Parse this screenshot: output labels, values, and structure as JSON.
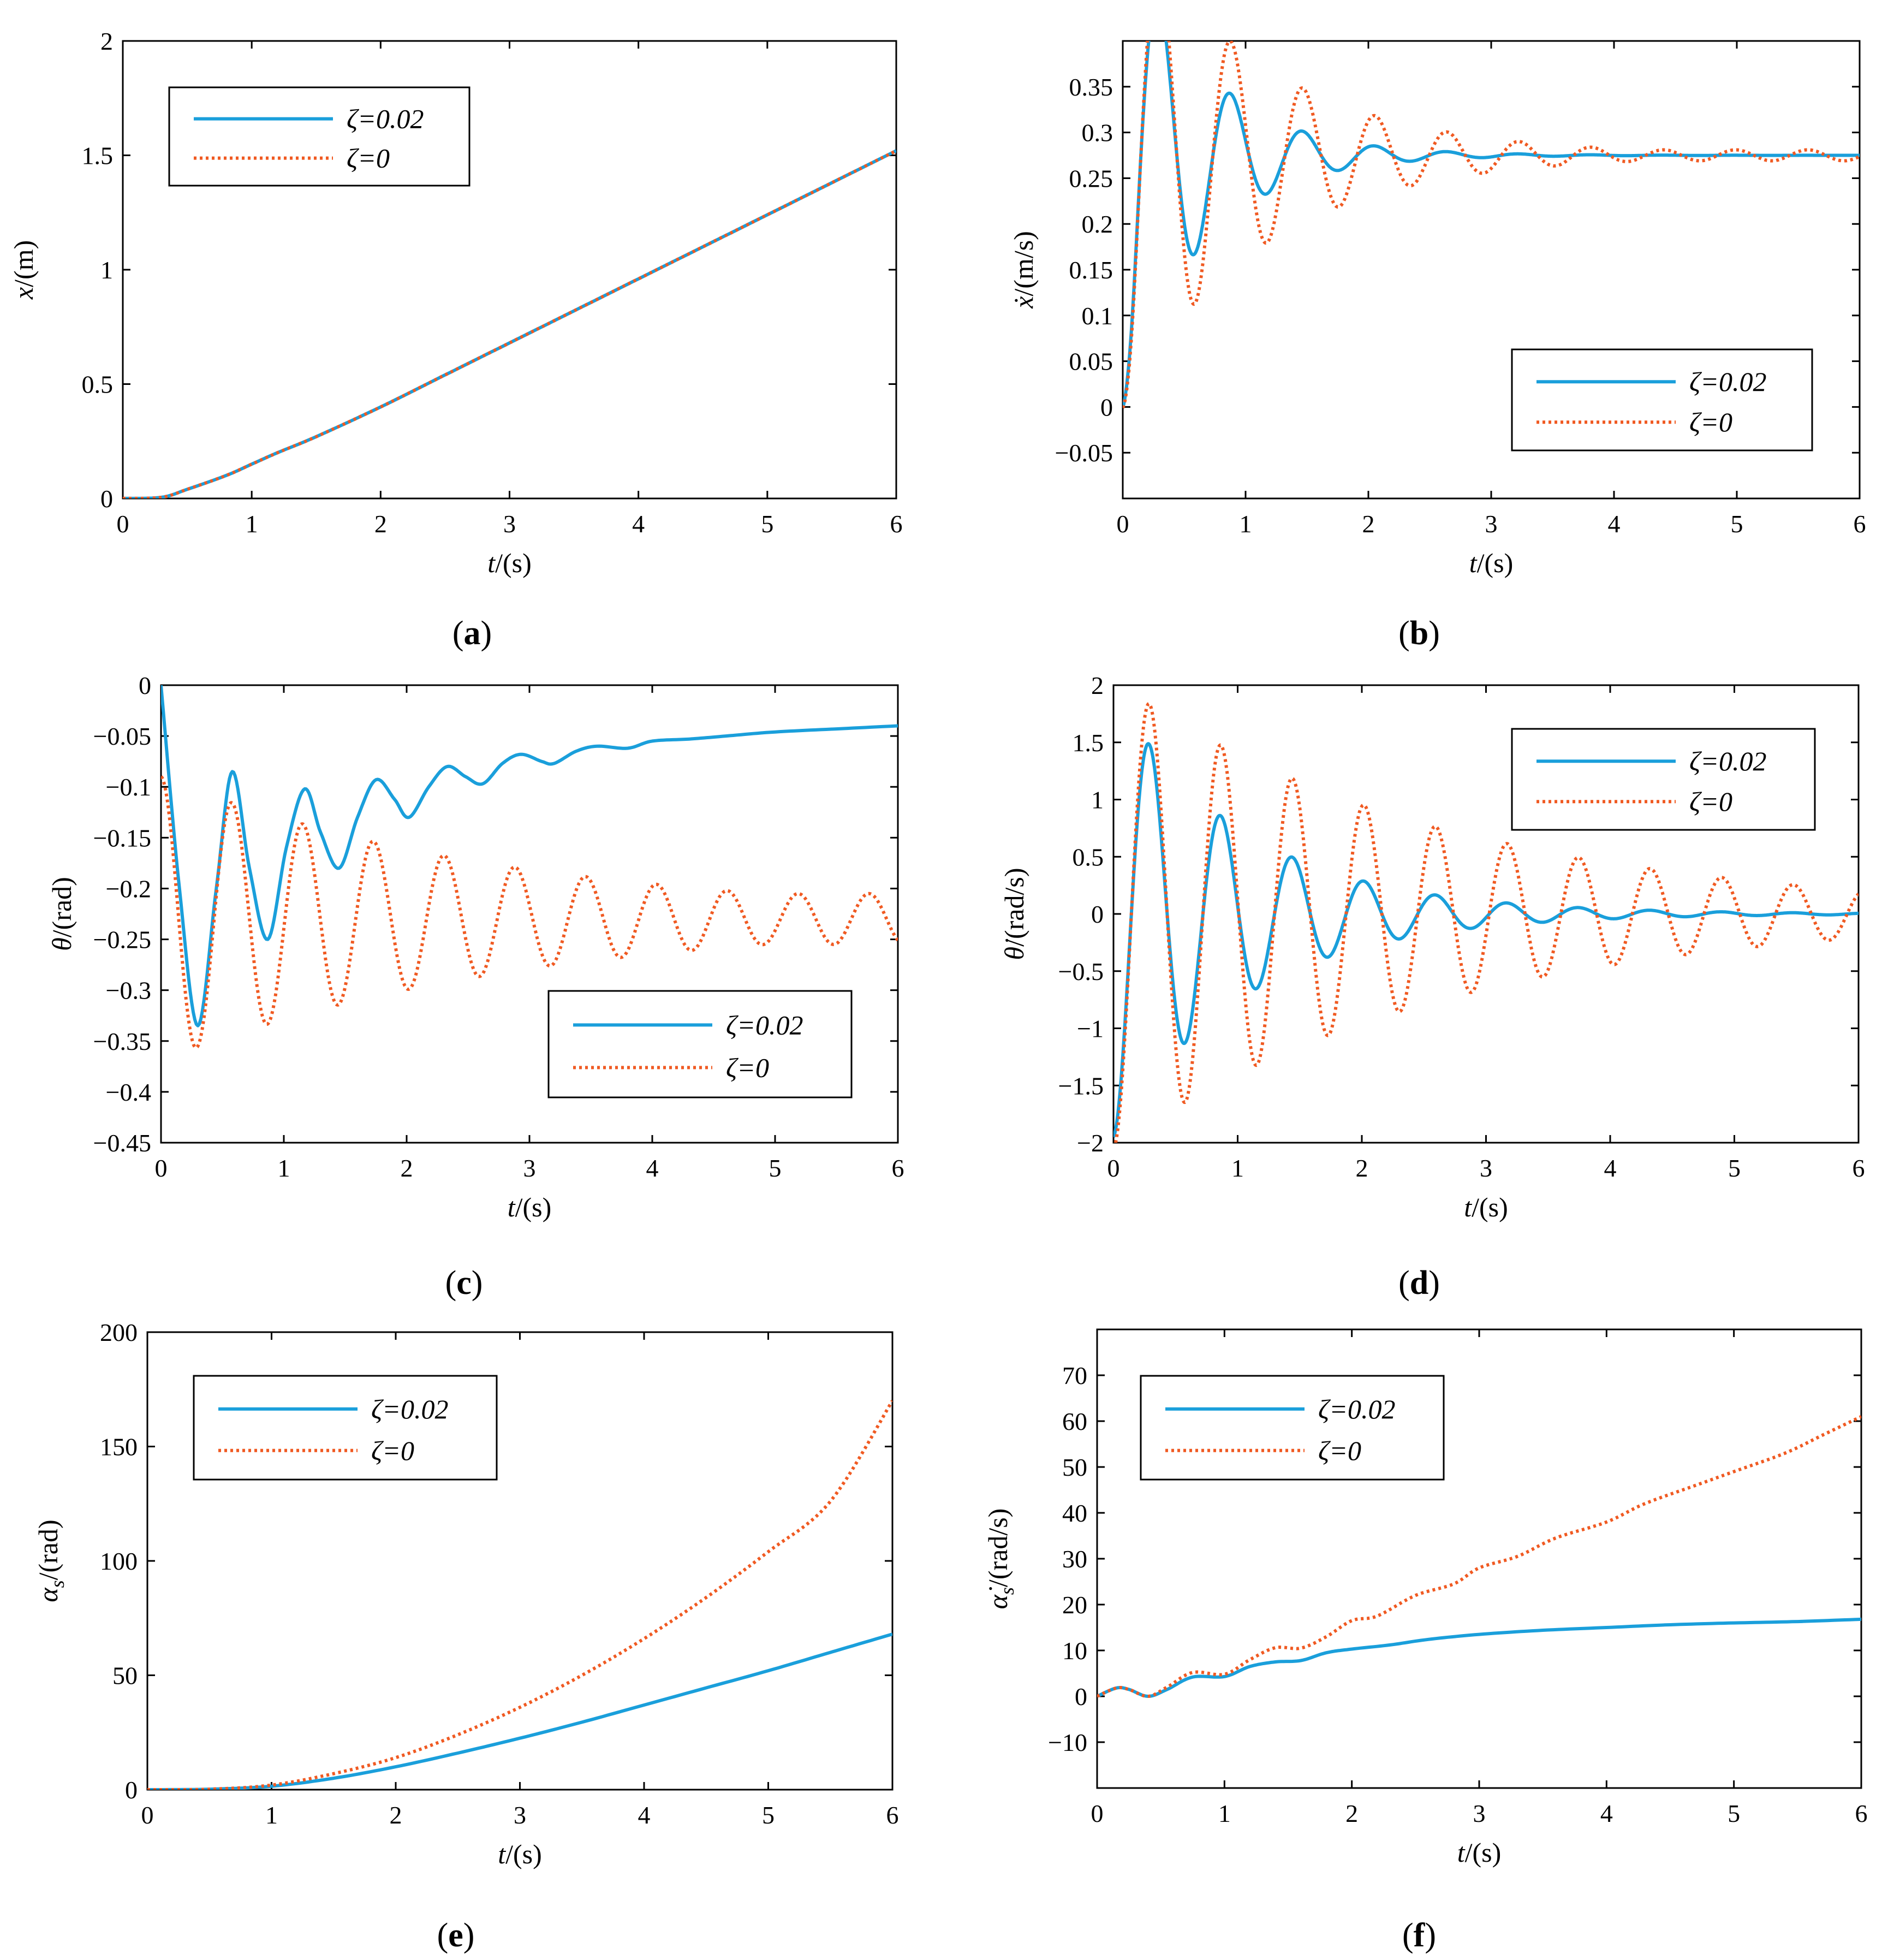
{
  "colors": {
    "damped": "#1a9fdb",
    "undamped": "#f05a22",
    "axes": "#000000"
  },
  "legend": {
    "damped_label": "ζ=0.02",
    "undamped_label": "ζ=0"
  },
  "chart_data": [
    {
      "id": "a",
      "type": "line",
      "caption_letter": "a",
      "xlabel": {
        "var": "t",
        "unit": "/(s)"
      },
      "ylabel": {
        "var": "x",
        "unit": "/(m)"
      },
      "xlim": [
        0,
        6
      ],
      "ylim": [
        0,
        2
      ],
      "xticks": [
        0,
        1,
        2,
        3,
        4,
        5,
        6
      ],
      "yticks": [
        0,
        0.5,
        1,
        1.5,
        2
      ],
      "ytick_labels": [
        "0",
        "0.5",
        "1",
        "1.5",
        "2"
      ],
      "legend_position": "top-left",
      "series": [
        {
          "name": "ζ=0.02",
          "style": "solid",
          "points": [
            [
              0,
              0
            ],
            [
              0.3,
              0.005
            ],
            [
              0.5,
              0.04
            ],
            [
              0.8,
              0.1
            ],
            [
              1.0,
              0.15
            ],
            [
              1.2,
              0.2
            ],
            [
              1.5,
              0.27
            ],
            [
              2,
              0.4
            ],
            [
              2.5,
              0.54
            ],
            [
              3,
              0.68
            ],
            [
              3.5,
              0.82
            ],
            [
              4,
              0.96
            ],
            [
              4.5,
              1.1
            ],
            [
              5,
              1.24
            ],
            [
              5.5,
              1.38
            ],
            [
              6,
              1.52
            ]
          ]
        },
        {
          "name": "ζ=0",
          "style": "dotted",
          "points": [
            [
              0,
              0
            ],
            [
              0.3,
              0.005
            ],
            [
              0.5,
              0.04
            ],
            [
              0.8,
              0.1
            ],
            [
              1.0,
              0.15
            ],
            [
              1.2,
              0.2
            ],
            [
              1.5,
              0.27
            ],
            [
              2,
              0.4
            ],
            [
              2.5,
              0.54
            ],
            [
              3,
              0.68
            ],
            [
              3.5,
              0.82
            ],
            [
              4,
              0.96
            ],
            [
              4.5,
              1.1
            ],
            [
              5,
              1.24
            ],
            [
              5.5,
              1.38
            ],
            [
              6,
              1.52
            ]
          ]
        }
      ]
    },
    {
      "id": "b",
      "type": "line",
      "caption_letter": "b",
      "xlabel": {
        "var": "t",
        "unit": "/(s)"
      },
      "ylabel": {
        "var": "ẋ",
        "unit": "/(m/s)"
      },
      "xlim": [
        0,
        6
      ],
      "ylim": [
        -0.1,
        0.4
      ],
      "xticks": [
        0,
        1,
        2,
        3,
        4,
        5,
        6
      ],
      "yticks": [
        -0.05,
        0,
        0.05,
        0.1,
        0.15,
        0.2,
        0.25,
        0.3,
        0.35
      ],
      "ytick_labels": [
        "−0.05",
        "0",
        "0.05",
        "0.1",
        "0.15",
        "0.2",
        "0.25",
        "0.3",
        "0.35"
      ],
      "legend_position": "bottom-right",
      "series": [
        {
          "name": "ζ=0.02",
          "style": "solid",
          "model": {
            "base": 0.275,
            "amp": -0.275,
            "omega": 10.7,
            "phase": 0,
            "decay": 1.6,
            "dip": -0.012
          }
        },
        {
          "name": "ζ=0",
          "style": "dotted",
          "model": {
            "base": 0.275,
            "amp": -0.275,
            "omega": 10.7,
            "phase": 0,
            "decay": 0.9,
            "dip": -0.012,
            "sustain": 0.006
          }
        }
      ]
    },
    {
      "id": "c",
      "type": "line",
      "caption_letter": "c",
      "xlabel": {
        "var": "t",
        "unit": "/(s)"
      },
      "ylabel": {
        "var": "θ",
        "unit": "/(rad)"
      },
      "xlim": [
        0,
        6
      ],
      "ylim": [
        -0.45,
        0
      ],
      "xticks": [
        0,
        1,
        2,
        3,
        4,
        5,
        6
      ],
      "yticks": [
        -0.45,
        -0.4,
        -0.35,
        -0.3,
        -0.25,
        -0.2,
        -0.15,
        -0.1,
        -0.05,
        0
      ],
      "ytick_labels": [
        "−0.45",
        "−0.4",
        "−0.35",
        "−0.3",
        "−0.25",
        "−0.2",
        "−0.15",
        "−0.1",
        "−0.05",
        "0"
      ],
      "legend_position": "bottom-right",
      "series": [
        {
          "name": "ζ=0.02",
          "style": "solid",
          "points": [
            [
              0,
              0
            ],
            [
              0.15,
              -0.2
            ],
            [
              0.3,
              -0.335
            ],
            [
              0.45,
              -0.2
            ],
            [
              0.58,
              -0.085
            ],
            [
              0.72,
              -0.18
            ],
            [
              0.87,
              -0.25
            ],
            [
              1.02,
              -0.16
            ],
            [
              1.17,
              -0.102
            ],
            [
              1.3,
              -0.145
            ],
            [
              1.45,
              -0.18
            ],
            [
              1.6,
              -0.13
            ],
            [
              1.75,
              -0.093
            ],
            [
              1.9,
              -0.112
            ],
            [
              2.02,
              -0.13
            ],
            [
              2.18,
              -0.1
            ],
            [
              2.33,
              -0.08
            ],
            [
              2.48,
              -0.09
            ],
            [
              2.62,
              -0.097
            ],
            [
              2.78,
              -0.077
            ],
            [
              2.93,
              -0.068
            ],
            [
              3.1,
              -0.075
            ],
            [
              3.2,
              -0.077
            ],
            [
              3.38,
              -0.065
            ],
            [
              3.55,
              -0.06
            ],
            [
              3.8,
              -0.062
            ],
            [
              4.0,
              -0.055
            ],
            [
              4.3,
              -0.053
            ],
            [
              4.6,
              -0.05
            ],
            [
              5.0,
              -0.046
            ],
            [
              5.5,
              -0.043
            ],
            [
              6,
              -0.04
            ]
          ]
        },
        {
          "name": "ζ=0",
          "style": "dotted",
          "model": {
            "base": -0.23,
            "amp": 0.14,
            "omega": 10.9,
            "phase": 0,
            "decay": 0.35,
            "floor": 0.025
          }
        }
      ]
    },
    {
      "id": "d",
      "type": "line",
      "caption_letter": "d",
      "xlabel": {
        "var": "t",
        "unit": "/(s)"
      },
      "ylabel": {
        "var": "θ̇",
        "unit": "/(rad/s)"
      },
      "xlim": [
        0,
        6
      ],
      "ylim": [
        -2,
        2
      ],
      "xticks": [
        0,
        1,
        2,
        3,
        4,
        5,
        6
      ],
      "yticks": [
        -2,
        -1.5,
        -1,
        -0.5,
        0,
        0.5,
        1,
        1.5,
        2
      ],
      "ytick_labels": [
        "−2",
        "−1.5",
        "−1",
        "−0.5",
        "0",
        "0.5",
        "1",
        "1.5",
        "2"
      ],
      "legend_position": "top-right",
      "series": [
        {
          "name": "ζ=0.02",
          "style": "solid",
          "model": {
            "base": 0,
            "amp": -1.95,
            "omega": 10.9,
            "phase": 0,
            "decay": 0.95
          }
        },
        {
          "name": "ζ=0",
          "style": "dotted",
          "model": {
            "base": 0,
            "amp": -2.05,
            "omega": 10.9,
            "phase": 0,
            "decay": 0.38,
            "floor": 0.2
          }
        }
      ]
    },
    {
      "id": "e",
      "type": "line",
      "caption_letter": "e",
      "xlabel": {
        "var": "t",
        "unit": "/(s)"
      },
      "ylabel": {
        "var": "α",
        "sub": "s",
        "unit": "/(rad)"
      },
      "xlim": [
        0,
        6
      ],
      "ylim": [
        0,
        200
      ],
      "xticks": [
        0,
        1,
        2,
        3,
        4,
        5,
        6
      ],
      "yticks": [
        0,
        50,
        100,
        150,
        200
      ],
      "ytick_labels": [
        "0",
        "50",
        "100",
        "150",
        "200"
      ],
      "legend_position": "top-left",
      "series": [
        {
          "name": "ζ=0.02",
          "style": "solid",
          "points": [
            [
              0,
              0
            ],
            [
              0.5,
              0.2
            ],
            [
              1,
              1.5
            ],
            [
              1.5,
              5
            ],
            [
              2,
              10
            ],
            [
              2.5,
              16
            ],
            [
              3,
              22.5
            ],
            [
              3.5,
              29.5
            ],
            [
              4,
              37
            ],
            [
              4.5,
              44.5
            ],
            [
              5,
              52
            ],
            [
              5.5,
              60
            ],
            [
              6,
              68
            ]
          ]
        },
        {
          "name": "ζ=0",
          "style": "dotted",
          "points": [
            [
              0,
              0
            ],
            [
              0.5,
              0.2
            ],
            [
              1,
              2
            ],
            [
              1.5,
              7
            ],
            [
              2,
              14
            ],
            [
              2.5,
              24
            ],
            [
              3,
              36
            ],
            [
              3.5,
              50
            ],
            [
              4,
              66
            ],
            [
              4.5,
              84
            ],
            [
              5,
              104
            ],
            [
              5.5,
              126
            ],
            [
              6,
              170
            ]
          ]
        }
      ]
    },
    {
      "id": "f",
      "type": "line",
      "caption_letter": "f",
      "xlabel": {
        "var": "t",
        "unit": "/(s)"
      },
      "ylabel": {
        "var": "α̇",
        "sub": "s",
        "unit": "/(rad/s)"
      },
      "xlim": [
        0,
        6
      ],
      "ylim": [
        -20,
        80
      ],
      "xticks": [
        0,
        1,
        2,
        3,
        4,
        5,
        6
      ],
      "yticks": [
        -10,
        0,
        10,
        20,
        30,
        40,
        50,
        60,
        70
      ],
      "ytick_labels": [
        "−10",
        "0",
        "10",
        "20",
        "30",
        "40",
        "50",
        "60",
        "70"
      ],
      "legend_position": "top-left",
      "series": [
        {
          "name": "ζ=0.02",
          "style": "solid",
          "points": [
            [
              0,
              0
            ],
            [
              0.15,
              1.8
            ],
            [
              0.25,
              1.5
            ],
            [
              0.4,
              0
            ],
            [
              0.55,
              1.5
            ],
            [
              0.75,
              4.2
            ],
            [
              1,
              4.3
            ],
            [
              1.2,
              6.5
            ],
            [
              1.4,
              7.5
            ],
            [
              1.6,
              7.8
            ],
            [
              1.8,
              9.5
            ],
            [
              2,
              10.3
            ],
            [
              2.3,
              11.2
            ],
            [
              2.6,
              12.4
            ],
            [
              3,
              13.5
            ],
            [
              3.5,
              14.4
            ],
            [
              4,
              15
            ],
            [
              4.5,
              15.6
            ],
            [
              5,
              16
            ],
            [
              5.5,
              16.3
            ],
            [
              6,
              16.8
            ]
          ]
        },
        {
          "name": "ζ=0",
          "style": "dotted",
          "points": [
            [
              0,
              0
            ],
            [
              0.15,
              1.8
            ],
            [
              0.25,
              1.5
            ],
            [
              0.4,
              0
            ],
            [
              0.55,
              2
            ],
            [
              0.75,
              5.2
            ],
            [
              1,
              4.8
            ],
            [
              1.2,
              8
            ],
            [
              1.4,
              10.6
            ],
            [
              1.6,
              10.5
            ],
            [
              1.8,
              13
            ],
            [
              2,
              16.5
            ],
            [
              2.2,
              17.5
            ],
            [
              2.5,
              22
            ],
            [
              2.8,
              24.5
            ],
            [
              3,
              28
            ],
            [
              3.3,
              30.5
            ],
            [
              3.6,
              34.5
            ],
            [
              4,
              38
            ],
            [
              4.3,
              42
            ],
            [
              4.7,
              46
            ],
            [
              5,
              49
            ],
            [
              5.4,
              53
            ],
            [
              5.7,
              57
            ],
            [
              6,
              61
            ]
          ]
        }
      ]
    }
  ]
}
